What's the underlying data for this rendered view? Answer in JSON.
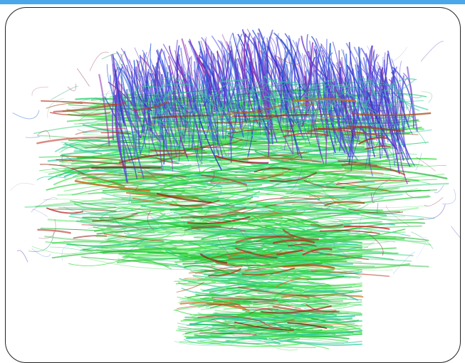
{
  "colors": {
    "topbar": "#4aa8ea",
    "frame_border": "#222222",
    "background": "#ffffff",
    "fiber_green": "#2fd13a",
    "fiber_teal": "#2fc9a0",
    "fiber_blue": "#3b3fd8",
    "fiber_purple": "#8a2fb0",
    "fiber_red": "#b02a1e",
    "fiber_orange": "#c9711f"
  },
  "image": {
    "subject": "brain-tractography-fibers",
    "view": "sagittal"
  }
}
